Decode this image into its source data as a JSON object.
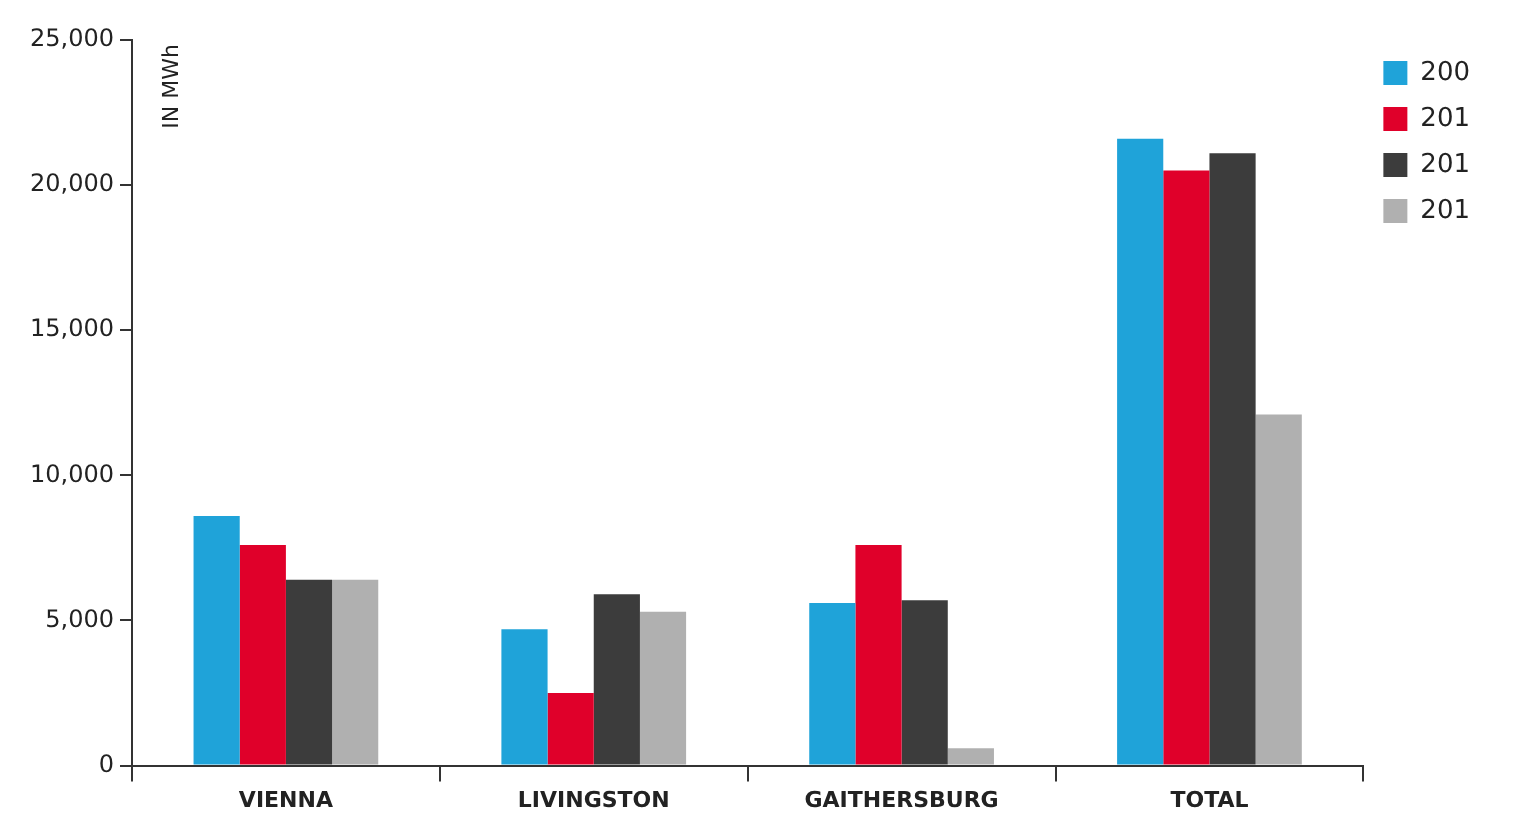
{
  "chart_data": {
    "type": "bar",
    "ylabel": "IN MWh",
    "categories": [
      "VIENNA",
      "LIVINGSTON",
      "GAITHERSBURG",
      "TOTAL"
    ],
    "series": [
      {
        "name": "200",
        "color": "#1fa3d9",
        "values": [
          8600,
          4700,
          5600,
          21600
        ]
      },
      {
        "name": "201",
        "color": "#e0002a",
        "values": [
          7600,
          2500,
          7600,
          20500
        ]
      },
      {
        "name": "201",
        "color": "#3c3c3c",
        "values": [
          6400,
          5900,
          5700,
          21100
        ]
      },
      {
        "name": "201",
        "color": "#b0b0b0",
        "values": [
          6400,
          5300,
          600,
          12100
        ]
      }
    ],
    "ylim": [
      0,
      25000
    ],
    "yticks": [
      {
        "value": 0,
        "label": "0"
      },
      {
        "value": 5000,
        "label": "5,000"
      },
      {
        "value": 10000,
        "label": "10,000"
      },
      {
        "value": 15000,
        "label": "15,000"
      },
      {
        "value": 20000,
        "label": "20,000"
      },
      {
        "value": 25000,
        "label": "25,000"
      }
    ],
    "grid": false,
    "legend": "top right"
  }
}
